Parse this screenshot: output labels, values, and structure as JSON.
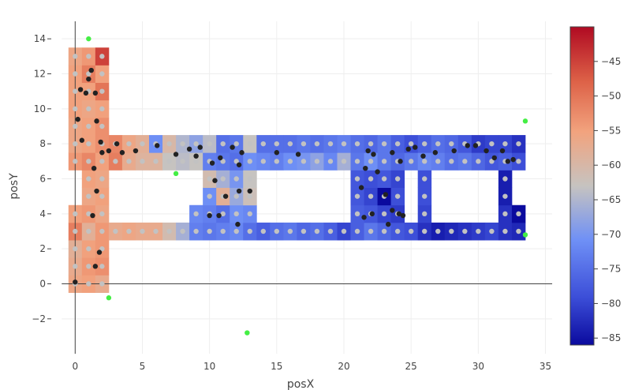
{
  "chart_data": {
    "type": "heatmap",
    "xlabel": "posX",
    "ylabel": "posY",
    "xlim": [
      -1.0,
      35.5
    ],
    "ylim": [
      -4.0,
      15.0
    ],
    "x_ticks": [
      0,
      5,
      10,
      15,
      20,
      25,
      30,
      35
    ],
    "y_ticks": [
      -2,
      0,
      2,
      4,
      6,
      8,
      10,
      12,
      14
    ],
    "colorscale": "coolwarm",
    "colorbar": {
      "min": -86,
      "max": -40,
      "ticks": [
        -45,
        -50,
        -55,
        -60,
        -65,
        -70,
        -75,
        -80,
        -85
      ]
    },
    "cell_size": 1,
    "cells": [
      {
        "x": 0,
        "y": 0,
        "v": -56
      },
      {
        "x": 1,
        "y": 0,
        "v": -55
      },
      {
        "x": 2,
        "y": 0,
        "v": -57
      },
      {
        "x": 0,
        "y": 1,
        "v": -57
      },
      {
        "x": 1,
        "y": 1,
        "v": -54
      },
      {
        "x": 2,
        "y": 1,
        "v": -53
      },
      {
        "x": 0,
        "y": 2,
        "v": -58
      },
      {
        "x": 1,
        "y": 2,
        "v": -55
      },
      {
        "x": 2,
        "y": 2,
        "v": -54
      },
      {
        "x": 0,
        "y": 3,
        "v": -51
      },
      {
        "x": 1,
        "y": 3,
        "v": -58
      },
      {
        "x": 2,
        "y": 3,
        "v": -54
      },
      {
        "x": 3,
        "y": 3,
        "v": -57
      },
      {
        "x": 4,
        "y": 3,
        "v": -56
      },
      {
        "x": 5,
        "y": 3,
        "v": -57
      },
      {
        "x": 6,
        "y": 3,
        "v": -57
      },
      {
        "x": 7,
        "y": 3,
        "v": -61
      },
      {
        "x": 8,
        "y": 3,
        "v": -66
      },
      {
        "x": 9,
        "y": 3,
        "v": -73
      },
      {
        "x": 10,
        "y": 3,
        "v": -74
      },
      {
        "x": 11,
        "y": 3,
        "v": -73
      },
      {
        "x": 12,
        "y": 3,
        "v": -72
      },
      {
        "x": 13,
        "y": 3,
        "v": -75
      },
      {
        "x": 14,
        "y": 3,
        "v": -77
      },
      {
        "x": 15,
        "y": 3,
        "v": -75
      },
      {
        "x": 16,
        "y": 3,
        "v": -74
      },
      {
        "x": 17,
        "y": 3,
        "v": -76
      },
      {
        "x": 18,
        "y": 3,
        "v": -75
      },
      {
        "x": 19,
        "y": 3,
        "v": -77
      },
      {
        "x": 20,
        "y": 3,
        "v": -80
      },
      {
        "x": 21,
        "y": 3,
        "v": -77
      },
      {
        "x": 22,
        "y": 3,
        "v": -74
      },
      {
        "x": 23,
        "y": 3,
        "v": -76
      },
      {
        "x": 24,
        "y": 3,
        "v": -78
      },
      {
        "x": 25,
        "y": 3,
        "v": -79
      },
      {
        "x": 26,
        "y": 3,
        "v": -82
      },
      {
        "x": 27,
        "y": 3,
        "v": -84
      },
      {
        "x": 28,
        "y": 3,
        "v": -83
      },
      {
        "x": 29,
        "y": 3,
        "v": -82
      },
      {
        "x": 30,
        "y": 3,
        "v": -81
      },
      {
        "x": 31,
        "y": 3,
        "v": -80
      },
      {
        "x": 32,
        "y": 3,
        "v": -82
      },
      {
        "x": 33,
        "y": 3,
        "v": -83
      },
      {
        "x": 0,
        "y": 4,
        "v": -55
      },
      {
        "x": 1,
        "y": 4,
        "v": -54
      },
      {
        "x": 2,
        "y": 4,
        "v": -56
      },
      {
        "x": 9,
        "y": 4,
        "v": -72
      },
      {
        "x": 10,
        "y": 4,
        "v": -73
      },
      {
        "x": 11,
        "y": 4,
        "v": -75
      },
      {
        "x": 12,
        "y": 4,
        "v": -71
      },
      {
        "x": 13,
        "y": 4,
        "v": -72
      },
      {
        "x": 21,
        "y": 4,
        "v": -77
      },
      {
        "x": 22,
        "y": 4,
        "v": -78
      },
      {
        "x": 23,
        "y": 4,
        "v": -80
      },
      {
        "x": 24,
        "y": 4,
        "v": -81
      },
      {
        "x": 26,
        "y": 4,
        "v": -80
      },
      {
        "x": 32,
        "y": 4,
        "v": -82
      },
      {
        "x": 33,
        "y": 4,
        "v": -86
      },
      {
        "x": 1,
        "y": 5,
        "v": -56
      },
      {
        "x": 2,
        "y": 5,
        "v": -55
      },
      {
        "x": 10,
        "y": 5,
        "v": -71
      },
      {
        "x": 11,
        "y": 5,
        "v": -58
      },
      {
        "x": 12,
        "y": 5,
        "v": -67
      },
      {
        "x": 13,
        "y": 5,
        "v": -62
      },
      {
        "x": 21,
        "y": 5,
        "v": -78
      },
      {
        "x": 22,
        "y": 5,
        "v": -80
      },
      {
        "x": 23,
        "y": 5,
        "v": -86
      },
      {
        "x": 24,
        "y": 5,
        "v": -79
      },
      {
        "x": 26,
        "y": 5,
        "v": -79
      },
      {
        "x": 32,
        "y": 5,
        "v": -84
      },
      {
        "x": 1,
        "y": 6,
        "v": -55
      },
      {
        "x": 2,
        "y": 6,
        "v": -56
      },
      {
        "x": 10,
        "y": 6,
        "v": -61
      },
      {
        "x": 11,
        "y": 6,
        "v": -66
      },
      {
        "x": 12,
        "y": 6,
        "v": -70
      },
      {
        "x": 13,
        "y": 6,
        "v": -63
      },
      {
        "x": 21,
        "y": 6,
        "v": -78
      },
      {
        "x": 22,
        "y": 6,
        "v": -79
      },
      {
        "x": 23,
        "y": 6,
        "v": -78
      },
      {
        "x": 24,
        "y": 6,
        "v": -80
      },
      {
        "x": 26,
        "y": 6,
        "v": -79
      },
      {
        "x": 32,
        "y": 6,
        "v": -84
      },
      {
        "x": 0,
        "y": 7,
        "v": -54
      },
      {
        "x": 1,
        "y": 7,
        "v": -52
      },
      {
        "x": 2,
        "y": 7,
        "v": -55
      },
      {
        "x": 3,
        "y": 7,
        "v": -51
      },
      {
        "x": 4,
        "y": 7,
        "v": -57
      },
      {
        "x": 5,
        "y": 7,
        "v": -59
      },
      {
        "x": 6,
        "y": 7,
        "v": -59
      },
      {
        "x": 7,
        "y": 7,
        "v": -63
      },
      {
        "x": 8,
        "y": 7,
        "v": -64
      },
      {
        "x": 9,
        "y": 7,
        "v": -63
      },
      {
        "x": 10,
        "y": 7,
        "v": -73
      },
      {
        "x": 11,
        "y": 7,
        "v": -74
      },
      {
        "x": 12,
        "y": 7,
        "v": -75
      },
      {
        "x": 13,
        "y": 7,
        "v": -71
      },
      {
        "x": 14,
        "y": 7,
        "v": -72
      },
      {
        "x": 15,
        "y": 7,
        "v": -73
      },
      {
        "x": 16,
        "y": 7,
        "v": -71
      },
      {
        "x": 17,
        "y": 7,
        "v": -70
      },
      {
        "x": 18,
        "y": 7,
        "v": -68
      },
      {
        "x": 19,
        "y": 7,
        "v": -72
      },
      {
        "x": 20,
        "y": 7,
        "v": -66
      },
      {
        "x": 21,
        "y": 7,
        "v": -74
      },
      {
        "x": 22,
        "y": 7,
        "v": -71
      },
      {
        "x": 23,
        "y": 7,
        "v": -74
      },
      {
        "x": 24,
        "y": 7,
        "v": -76
      },
      {
        "x": 25,
        "y": 7,
        "v": -74
      },
      {
        "x": 26,
        "y": 7,
        "v": -72
      },
      {
        "x": 27,
        "y": 7,
        "v": -73
      },
      {
        "x": 28,
        "y": 7,
        "v": -75
      },
      {
        "x": 29,
        "y": 7,
        "v": -74
      },
      {
        "x": 30,
        "y": 7,
        "v": -76
      },
      {
        "x": 31,
        "y": 7,
        "v": -78
      },
      {
        "x": 32,
        "y": 7,
        "v": -77
      },
      {
        "x": 33,
        "y": 7,
        "v": -79
      },
      {
        "x": 0,
        "y": 8,
        "v": -56
      },
      {
        "x": 1,
        "y": 8,
        "v": -55
      },
      {
        "x": 2,
        "y": 8,
        "v": -53
      },
      {
        "x": 3,
        "y": 8,
        "v": -52
      },
      {
        "x": 4,
        "y": 8,
        "v": -56
      },
      {
        "x": 5,
        "y": 8,
        "v": -58
      },
      {
        "x": 6,
        "y": 8,
        "v": -71
      },
      {
        "x": 7,
        "y": 8,
        "v": -60
      },
      {
        "x": 8,
        "y": 8,
        "v": -65
      },
      {
        "x": 9,
        "y": 8,
        "v": -68
      },
      {
        "x": 10,
        "y": 8,
        "v": -64
      },
      {
        "x": 11,
        "y": 8,
        "v": -75
      },
      {
        "x": 12,
        "y": 8,
        "v": -74
      },
      {
        "x": 13,
        "y": 8,
        "v": -63
      },
      {
        "x": 14,
        "y": 8,
        "v": -75
      },
      {
        "x": 15,
        "y": 8,
        "v": -75
      },
      {
        "x": 16,
        "y": 8,
        "v": -75
      },
      {
        "x": 17,
        "y": 8,
        "v": -74
      },
      {
        "x": 18,
        "y": 8,
        "v": -75
      },
      {
        "x": 19,
        "y": 8,
        "v": -74
      },
      {
        "x": 20,
        "y": 8,
        "v": -73
      },
      {
        "x": 21,
        "y": 8,
        "v": -75
      },
      {
        "x": 22,
        "y": 8,
        "v": -76
      },
      {
        "x": 23,
        "y": 8,
        "v": -74
      },
      {
        "x": 24,
        "y": 8,
        "v": -77
      },
      {
        "x": 25,
        "y": 8,
        "v": -79
      },
      {
        "x": 26,
        "y": 8,
        "v": -77
      },
      {
        "x": 27,
        "y": 8,
        "v": -75
      },
      {
        "x": 28,
        "y": 8,
        "v": -76
      },
      {
        "x": 29,
        "y": 8,
        "v": -78
      },
      {
        "x": 30,
        "y": 8,
        "v": -81
      },
      {
        "x": 31,
        "y": 8,
        "v": -80
      },
      {
        "x": 32,
        "y": 8,
        "v": -80
      },
      {
        "x": 33,
        "y": 8,
        "v": -82
      },
      {
        "x": 0,
        "y": 9,
        "v": -56
      },
      {
        "x": 1,
        "y": 9,
        "v": -55
      },
      {
        "x": 2,
        "y": 9,
        "v": -53
      },
      {
        "x": 0,
        "y": 10,
        "v": -55
      },
      {
        "x": 1,
        "y": 10,
        "v": -56
      },
      {
        "x": 2,
        "y": 10,
        "v": -55
      },
      {
        "x": 0,
        "y": 11,
        "v": -55
      },
      {
        "x": 1,
        "y": 11,
        "v": -55
      },
      {
        "x": 2,
        "y": 11,
        "v": -50
      },
      {
        "x": 0,
        "y": 12,
        "v": -55
      },
      {
        "x": 1,
        "y": 12,
        "v": -51
      },
      {
        "x": 2,
        "y": 12,
        "v": -55
      },
      {
        "x": 0,
        "y": 13,
        "v": -56
      },
      {
        "x": 1,
        "y": 13,
        "v": -54
      },
      {
        "x": 2,
        "y": 13,
        "v": -45
      }
    ],
    "measurement_points": [
      [
        0.0,
        0.1
      ],
      [
        1.5,
        1.0
      ],
      [
        1.8,
        1.8
      ],
      [
        1.3,
        3.9
      ],
      [
        1.6,
        5.3
      ],
      [
        1.4,
        6.6
      ],
      [
        0.5,
        8.2
      ],
      [
        0.2,
        9.4
      ],
      [
        1.6,
        9.3
      ],
      [
        0.4,
        11.1
      ],
      [
        0.8,
        10.9
      ],
      [
        1.5,
        10.9
      ],
      [
        1.0,
        11.7
      ],
      [
        1.2,
        12.2
      ],
      [
        1.9,
        8.1
      ],
      [
        2.0,
        7.5
      ],
      [
        2.5,
        7.6
      ],
      [
        3.1,
        8.0
      ],
      [
        3.5,
        7.5
      ],
      [
        4.5,
        7.6
      ],
      [
        6.1,
        7.9
      ],
      [
        7.5,
        7.4
      ],
      [
        8.5,
        7.7
      ],
      [
        9.3,
        7.8
      ],
      [
        9.0,
        7.3
      ],
      [
        10.2,
        6.9
      ],
      [
        10.4,
        5.9
      ],
      [
        10.8,
        7.2
      ],
      [
        11.7,
        7.8
      ],
      [
        12.2,
        6.8
      ],
      [
        12.4,
        7.5
      ],
      [
        11.2,
        5.0
      ],
      [
        12.2,
        5.3
      ],
      [
        13.0,
        5.3
      ],
      [
        10.0,
        3.9
      ],
      [
        10.7,
        3.9
      ],
      [
        12.1,
        3.4
      ],
      [
        15.0,
        7.5
      ],
      [
        16.6,
        7.4
      ],
      [
        21.6,
        6.6
      ],
      [
        21.8,
        7.6
      ],
      [
        22.2,
        7.4
      ],
      [
        22.5,
        6.4
      ],
      [
        23.1,
        5.1
      ],
      [
        23.6,
        7.5
      ],
      [
        24.2,
        7.0
      ],
      [
        21.3,
        5.5
      ],
      [
        21.5,
        3.8
      ],
      [
        22.1,
        4.0
      ],
      [
        23.3,
        3.4
      ],
      [
        23.6,
        4.2
      ],
      [
        24.1,
        4.0
      ],
      [
        24.4,
        3.9
      ],
      [
        24.8,
        7.7
      ],
      [
        25.3,
        7.8
      ],
      [
        25.9,
        7.3
      ],
      [
        26.8,
        7.5
      ],
      [
        28.2,
        7.6
      ],
      [
        29.2,
        7.9
      ],
      [
        29.8,
        7.9
      ],
      [
        30.6,
        7.6
      ],
      [
        31.2,
        7.2
      ],
      [
        31.8,
        7.6
      ],
      [
        32.2,
        7.0
      ],
      [
        32.6,
        7.1
      ]
    ],
    "access_points": [
      [
        1.0,
        14.0
      ],
      [
        33.5,
        9.3
      ],
      [
        7.5,
        6.3
      ],
      [
        2.5,
        -0.8
      ],
      [
        12.8,
        -2.8
      ],
      [
        33.5,
        2.8
      ]
    ]
  }
}
